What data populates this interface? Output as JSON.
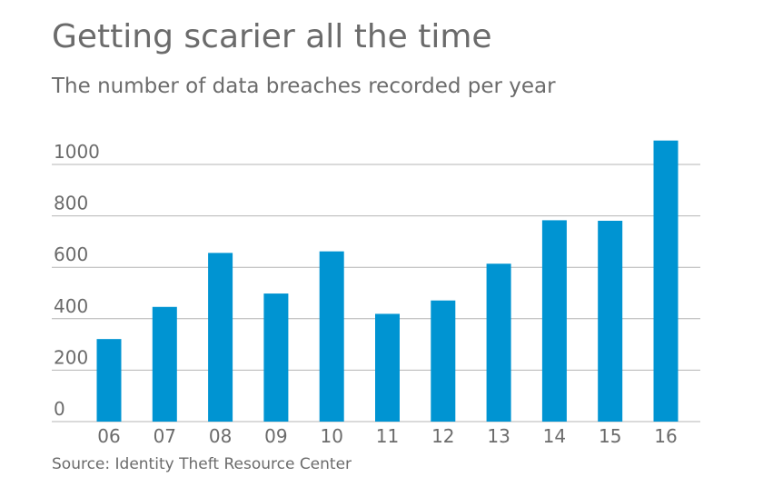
{
  "chart_data": {
    "type": "bar",
    "title": "Getting scarier all the time",
    "subtitle": "The number of data breaches recorded per year",
    "source": "Source: Identity Theft Resource Center",
    "categories": [
      "06",
      "07",
      "08",
      "09",
      "10",
      "11",
      "12",
      "13",
      "14",
      "15",
      "16"
    ],
    "values": [
      321,
      446,
      656,
      498,
      662,
      419,
      471,
      614,
      783,
      781,
      1093
    ],
    "yticks": [
      0,
      200,
      400,
      600,
      800,
      1000
    ],
    "ylim": [
      0,
      1100
    ],
    "xlabel": "",
    "ylabel": "",
    "grid": true,
    "colors": {
      "bar": "#0094d2",
      "grid": "#b4b4b4",
      "text": "#6b6b6b"
    }
  }
}
